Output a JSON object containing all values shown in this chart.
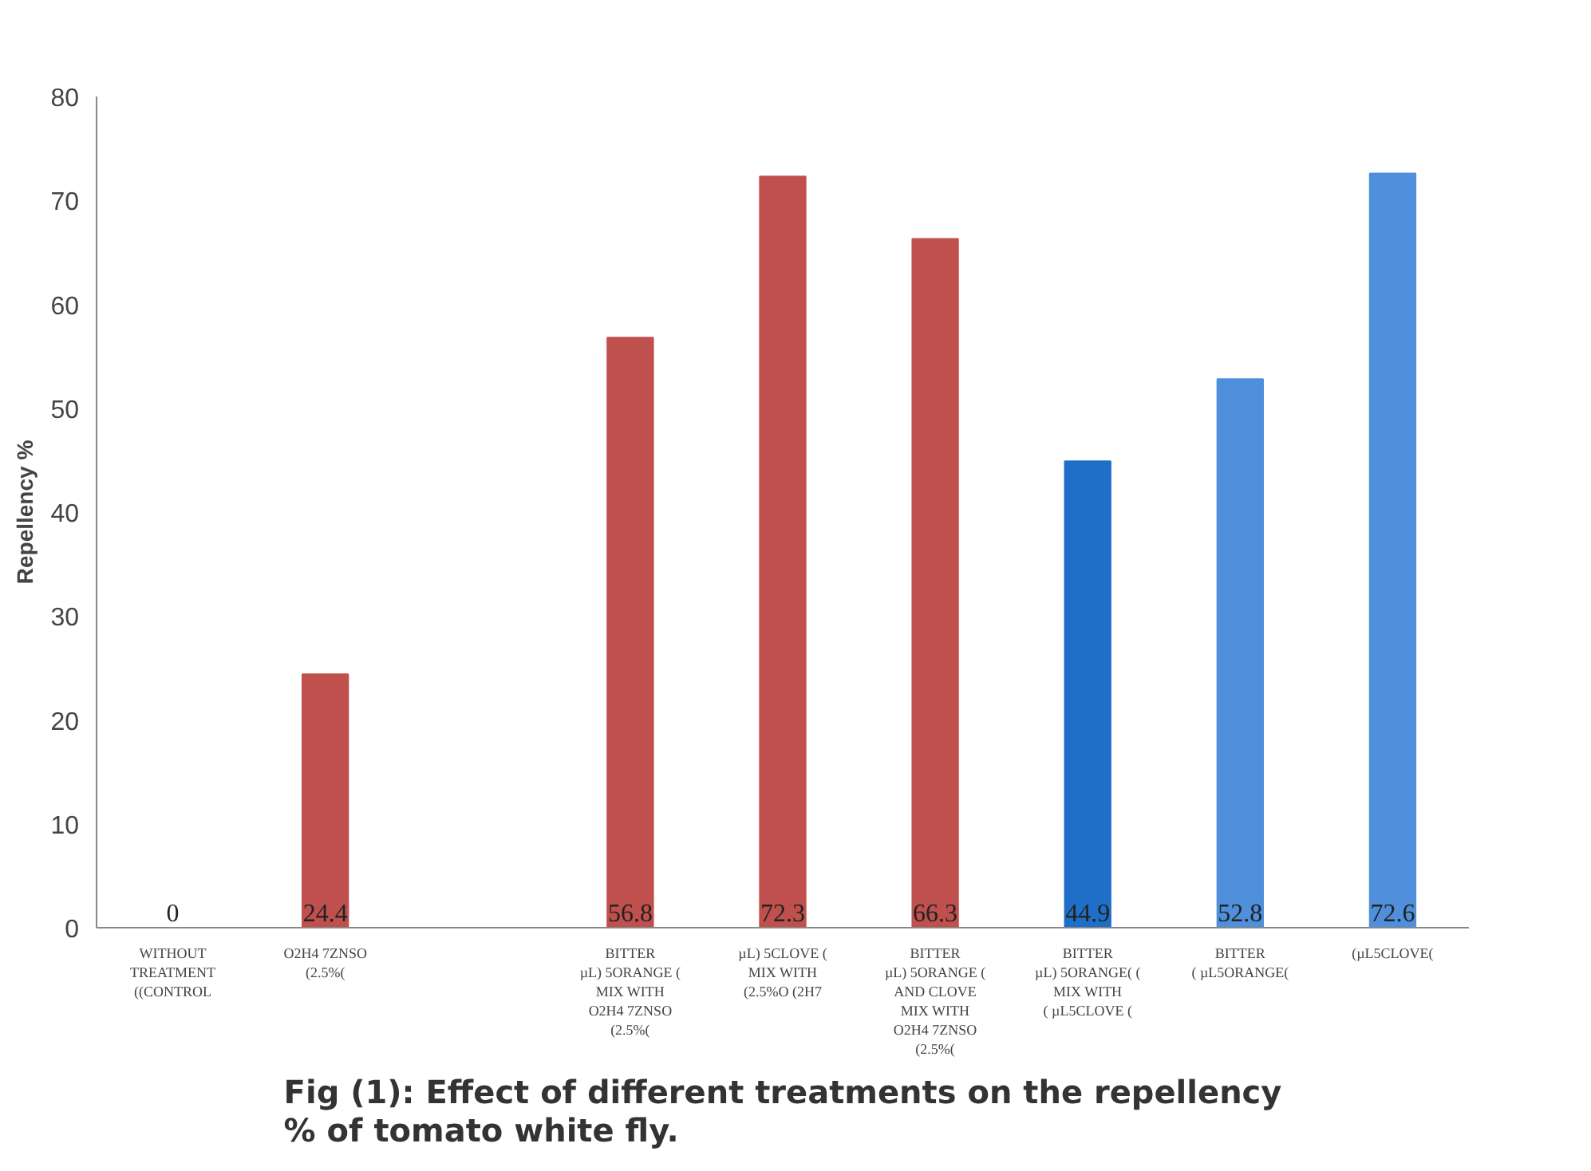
{
  "chart_data": {
    "type": "bar",
    "title": "Fig (1): Effect of different treatments on the repellency\n% of tomato white fly.",
    "ylabel": "Repellency %",
    "categories": [
      "WITHOUT\nTREATMENT\n((CONTROL",
      "O2H4 7ZNSO\n(2.5%(",
      null,
      "BITTER\nµL) 5ORANGE (\nMIX WITH\nO2H4 7ZNSO\n(2.5%(",
      "µL) 5CLOVE (\nMIX WITH\n(2.5%O (2H7",
      "BITTER\nµL) 5ORANGE (\nAND CLOVE\nMIX WITH\nO2H4 7ZNSO\n(2.5%(",
      "BITTER\nµL) 5ORANGE( (\nMIX WITH\n( µL5CLOVE (",
      "BITTER\n( µL5ORANGE(",
      "(µL5CLOVE("
    ],
    "values": [
      0,
      24.4,
      null,
      56.8,
      72.3,
      66.3,
      44.9,
      52.8,
      72.6
    ],
    "colors": [
      "#c0504d",
      "#c0504d",
      "#c0504d",
      "#c0504d",
      "#c0504d",
      "#c0504d",
      "#1f6fc8",
      "#4f8fdb",
      "#4f8fdb"
    ],
    "value_labels": [
      "0",
      "24.4",
      null,
      "56.8",
      "72.3",
      "66.3",
      "44.9",
      "52.8",
      "72.6"
    ],
    "ylim": [
      0,
      80
    ],
    "yticks": [
      0,
      10,
      20,
      30,
      40,
      50,
      60,
      70,
      80
    ],
    "grid": false
  }
}
